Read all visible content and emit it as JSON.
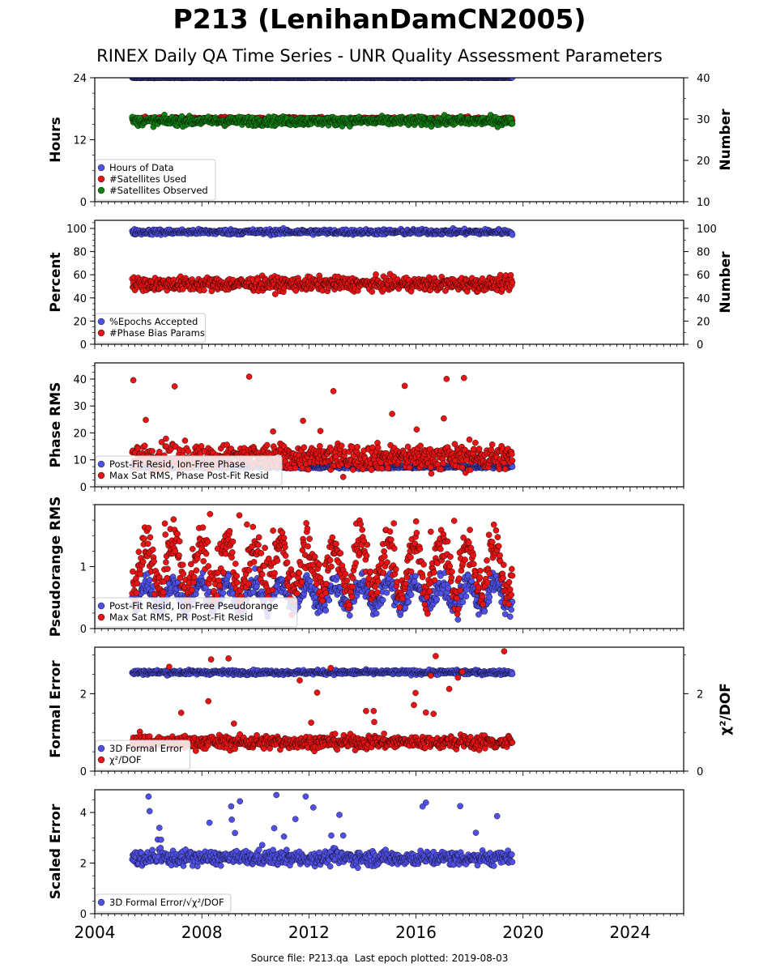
{
  "header": {
    "title": "P213 (LenihanDamCN2005)",
    "subtitle": "RINEX Daily QA Time Series - UNR Quality Assessment Parameters"
  },
  "footer": {
    "source_label": "Source file:",
    "source_file": "P213.qa",
    "last_epoch_label": "Last epoch plotted:",
    "last_epoch": "2019-08-03"
  },
  "colors": {
    "blue": "#5050e6",
    "red": "#e61414",
    "green": "#128012",
    "navy": "#0a0a50"
  },
  "chart_data": [
    {
      "type": "scatter",
      "xlim": [
        2004,
        2026
      ],
      "x_range_data": [
        2005.4,
        2019.6
      ],
      "ylabel": "Hours",
      "ylim": [
        0,
        24
      ],
      "yticks": [
        0,
        12,
        24
      ],
      "y2label": "Number",
      "y2lim": [
        10,
        40
      ],
      "y2ticks": [
        10,
        20,
        30,
        40
      ],
      "legend_position": "lower-left",
      "series": [
        {
          "name": "Hours of Data",
          "color": "#5050e6",
          "axis": "left",
          "y_typical": 24,
          "y_spread": 0.05
        },
        {
          "name": "#Satellites Used",
          "color": "#e61414",
          "axis": "right",
          "y_typical": 30,
          "y_spread": 0.4
        },
        {
          "name": "#Satellites Observed",
          "color": "#128012",
          "axis": "right",
          "y_typical": 29.5,
          "y_spread": 0.9
        }
      ]
    },
    {
      "type": "scatter",
      "xlim": [
        2004,
        2026
      ],
      "x_range_data": [
        2005.4,
        2019.6
      ],
      "ylabel": "Percent",
      "ylim": [
        0,
        107
      ],
      "yticks": [
        0,
        20,
        40,
        60,
        80,
        100
      ],
      "y2label": "Number",
      "y2lim": [
        0,
        107
      ],
      "y2ticks": [
        0,
        20,
        40,
        60,
        80,
        100
      ],
      "legend_position": "lower-left",
      "series": [
        {
          "name": "%Epochs Accepted",
          "color": "#5050e6",
          "axis": "left",
          "y_typical": 97,
          "y_spread": 2
        },
        {
          "name": "#Phase Bias Params",
          "color": "#e61414",
          "axis": "right",
          "y_typical": 52,
          "y_spread": 5
        }
      ]
    },
    {
      "type": "scatter",
      "xlim": [
        2004,
        2026
      ],
      "x_range_data": [
        2005.4,
        2019.6
      ],
      "ylabel": "Phase RMS",
      "ylim": [
        0,
        46
      ],
      "yticks": [
        0,
        10,
        20,
        30,
        40
      ],
      "legend_position": "lower-left",
      "series": [
        {
          "name": "Post-Fit Resid, Ion-Free Phase",
          "color": "#5050e6",
          "y_typical": 7.5,
          "y_spread": 0.6
        },
        {
          "name": "Max Sat RMS, Phase Post-Fit Resid",
          "color": "#e61414",
          "y_typical": 11,
          "y_spread": 4,
          "max": 43
        }
      ]
    },
    {
      "type": "scatter",
      "xlim": [
        2004,
        2026
      ],
      "x_range_data": [
        2005.4,
        2019.6
      ],
      "ylabel": "Pseudorange RMS",
      "ylim": [
        0,
        2
      ],
      "yticks": [
        0,
        1
      ],
      "legend_position": "lower-left",
      "series": [
        {
          "name": "Post-Fit Resid, Ion-Free Pseudorange",
          "color": "#5050e6",
          "y_typical": 0.55,
          "y_spread": 0.15,
          "seasonal": true
        },
        {
          "name": "Max Sat RMS, PR Post-Fit Resid",
          "color": "#e61414",
          "y_typical": 1.0,
          "y_spread": 0.3,
          "seasonal": true,
          "max": 1.85
        }
      ]
    },
    {
      "type": "scatter",
      "xlim": [
        2004,
        2026
      ],
      "x_range_data": [
        2005.4,
        2019.6
      ],
      "ylabel": "Formal Error",
      "ylim": [
        0,
        3.2
      ],
      "yticks": [
        0,
        2
      ],
      "y2label": "χ²/DOF",
      "y2lim": [
        0,
        3.2
      ],
      "y2ticks": [
        0,
        2
      ],
      "legend_position": "lower-left",
      "series": [
        {
          "name": "3D Formal Error",
          "color": "#5050e6",
          "axis": "left",
          "y_typical": 2.55,
          "y_spread": 0.05
        },
        {
          "name": "χ²/DOF",
          "color": "#e61414",
          "axis": "right",
          "y_typical": 0.75,
          "y_spread": 0.15,
          "max": 3.1
        }
      ]
    },
    {
      "type": "scatter",
      "xlim": [
        2004,
        2026
      ],
      "x_range_data": [
        2005.4,
        2019.6
      ],
      "xticks": [
        2004,
        2008,
        2012,
        2016,
        2020,
        2024
      ],
      "ylabel": "Scaled Error",
      "ylim": [
        0,
        4.9
      ],
      "yticks": [
        0,
        2,
        4
      ],
      "legend_position": "lower-left",
      "series": [
        {
          "name": "3D Formal Error/√χ²/DOF",
          "color": "#5050e6",
          "y_typical": 2.2,
          "y_spread": 0.25,
          "max": 4.7
        }
      ]
    }
  ]
}
